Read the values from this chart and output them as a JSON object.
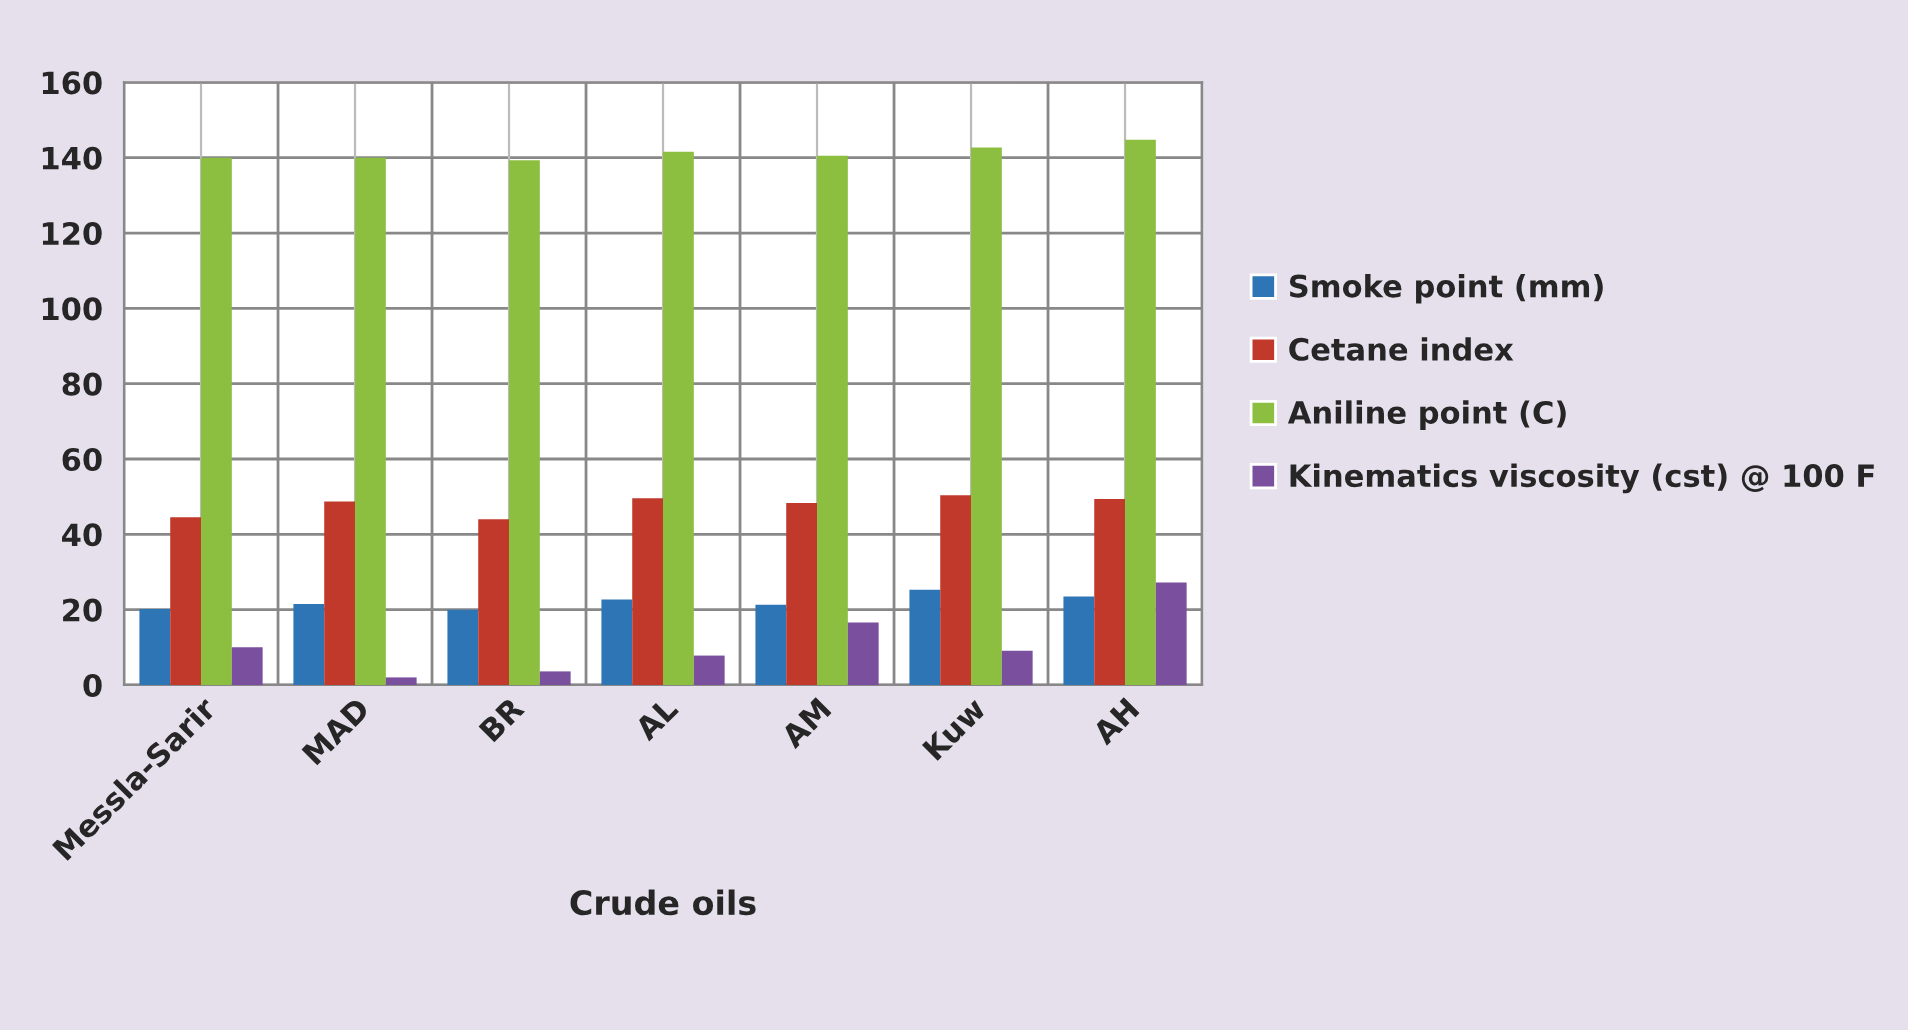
{
  "chart_data": {
    "type": "bar",
    "xlabel": "Crude oils",
    "categories": [
      "Messla-Sarir",
      "MAD",
      "BR",
      "AL",
      "AM",
      "Kuw",
      "AH"
    ],
    "series": [
      {
        "name": "Smoke point (mm)",
        "color": "#2e75b6",
        "values": [
          20.2,
          21.5,
          20,
          22.7,
          21.3,
          25.3,
          23.5
        ]
      },
      {
        "name": "Cetane index",
        "color": "#c0392b",
        "values": [
          44.5,
          48.7,
          44,
          49.6,
          48.3,
          50.4,
          49.4
        ]
      },
      {
        "name": "Aniline point (C)",
        "color": "#8cbf3f",
        "values": [
          140,
          140,
          139.3,
          141.6,
          140.5,
          142.7,
          144.8
        ]
      },
      {
        "name": "Kinematics viscosity (cst) @ 100 F",
        "color": "#7a4f9e",
        "values": [
          10,
          2,
          3.6,
          7.8,
          16.6,
          9.1,
          27.2
        ]
      }
    ],
    "ylim": [
      0,
      160
    ],
    "yticks": [
      0,
      20,
      40,
      60,
      80,
      100,
      120,
      140,
      160
    ],
    "grid": true,
    "legend": "right"
  }
}
